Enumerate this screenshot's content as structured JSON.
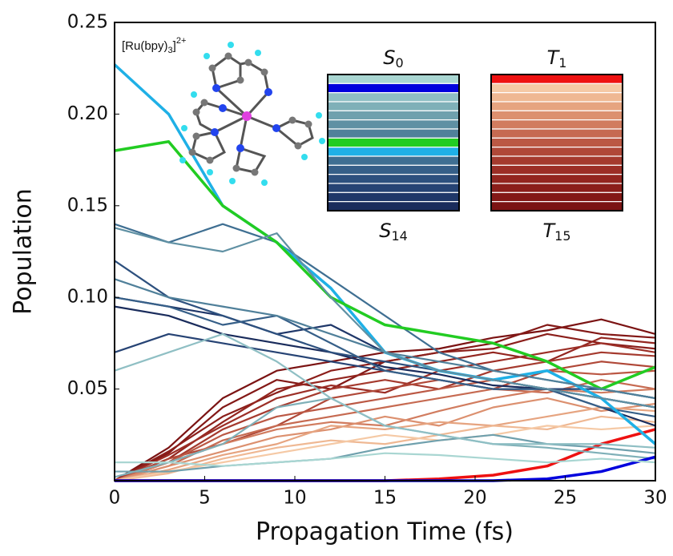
{
  "chart_data": {
    "type": "line",
    "x_label": "Propagation Time (fs)",
    "y_label": "Population",
    "xlim": [
      0,
      30
    ],
    "ylim": [
      0,
      0.25
    ],
    "xticks": [
      0,
      5,
      10,
      15,
      20,
      25,
      30
    ],
    "yticks": [
      0.05,
      {
        "value": 0.1,
        "label": "0.10"
      },
      0.15,
      {
        "value": 0.2,
        "label": "0.20"
      },
      0.25
    ],
    "annotation": {
      "text": "[Ru(bpy)",
      "sub": "3",
      "tail": "]",
      "sup": "2+"
    },
    "legend": {
      "groups": [
        {
          "top": {
            "symbol": "S",
            "subscript": "0"
          },
          "bottom": {
            "symbol": "S",
            "subscript": "14"
          }
        },
        {
          "top": {
            "symbol": "T",
            "subscript": "1"
          },
          "bottom": {
            "symbol": "T",
            "subscript": "15"
          }
        }
      ]
    },
    "x": [
      0,
      3,
      6,
      9,
      12,
      15,
      18,
      21,
      24,
      27,
      30
    ],
    "series": [
      {
        "color": "#a9d6d2",
        "values": [
          0.01,
          0.01,
          0.008,
          0.01,
          0.012,
          0.015,
          0.014,
          0.012,
          0.01,
          0.012,
          0.01
        ]
      },
      {
        "color": "#0000dd",
        "values": [
          0,
          0,
          0,
          0,
          0,
          0,
          0,
          0,
          0.001,
          0.005,
          0.013
        ]
      },
      {
        "color": "#8fbfc4",
        "values": [
          0.06,
          0.07,
          0.08,
          0.065,
          0.045,
          0.03,
          0.025,
          0.02,
          0.02,
          0.02,
          0.018
        ]
      },
      {
        "color": "#7fb0b8",
        "values": [
          0.002,
          0.01,
          0.02,
          0.04,
          0.045,
          0.03,
          0.025,
          0.02,
          0.018,
          0.015,
          0.012
        ]
      },
      {
        "color": "#6fa0ad",
        "values": [
          0.005,
          0.005,
          0.008,
          0.01,
          0.012,
          0.018,
          0.022,
          0.025,
          0.02,
          0.018,
          0.015
        ]
      },
      {
        "color": "#5f90a3",
        "values": [
          0.138,
          0.13,
          0.125,
          0.135,
          0.1,
          0.07,
          0.06,
          0.055,
          0.05,
          0.045,
          0.04
        ]
      },
      {
        "color": "#50809a",
        "values": [
          0.11,
          0.1,
          0.095,
          0.09,
          0.08,
          0.07,
          0.065,
          0.06,
          0.055,
          0.05,
          0.045
        ]
      },
      {
        "color": "#22cc22",
        "values": [
          0.18,
          0.185,
          0.15,
          0.13,
          0.1,
          0.085,
          0.08,
          0.075,
          0.065,
          0.05,
          0.062
        ]
      },
      {
        "color": "#1fb0e6",
        "values": [
          0.227,
          0.2,
          0.15,
          0.13,
          0.105,
          0.07,
          0.06,
          0.055,
          0.06,
          0.045,
          0.02
        ]
      },
      {
        "color": "#3f6f92",
        "values": [
          0.14,
          0.13,
          0.14,
          0.13,
          0.11,
          0.09,
          0.07,
          0.06,
          0.055,
          0.05,
          0.045
        ]
      },
      {
        "color": "#365f88",
        "values": [
          0.1,
          0.095,
          0.085,
          0.09,
          0.075,
          0.06,
          0.055,
          0.05,
          0.05,
          0.04,
          0.035
        ]
      },
      {
        "color": "#2d507e",
        "values": [
          0.12,
          0.1,
          0.09,
          0.08,
          0.07,
          0.065,
          0.06,
          0.055,
          0.05,
          0.045,
          0.04
        ]
      },
      {
        "color": "#264374",
        "values": [
          0.07,
          0.08,
          0.075,
          0.07,
          0.065,
          0.06,
          0.055,
          0.05,
          0.05,
          0.05,
          0.045
        ]
      },
      {
        "color": "#1f3769",
        "values": [
          0.1,
          0.095,
          0.09,
          0.08,
          0.085,
          0.07,
          0.06,
          0.055,
          0.05,
          0.045,
          0.04
        ]
      },
      {
        "color": "#1a2c5c",
        "values": [
          0.095,
          0.09,
          0.08,
          0.075,
          0.07,
          0.062,
          0.058,
          0.052,
          0.05,
          0.04,
          0.03
        ]
      },
      {
        "color": "#ee1111",
        "values": [
          0,
          0,
          0,
          0,
          0,
          0,
          0.001,
          0.003,
          0.008,
          0.02,
          0.028
        ]
      },
      {
        "color": "#f5c9a5",
        "values": [
          0,
          0.005,
          0.01,
          0.015,
          0.02,
          0.025,
          0.022,
          0.025,
          0.03,
          0.028,
          0.03
        ]
      },
      {
        "color": "#efb893",
        "values": [
          0,
          0.004,
          0.012,
          0.018,
          0.022,
          0.02,
          0.025,
          0.03,
          0.028,
          0.035,
          0.032
        ]
      },
      {
        "color": "#e6a480",
        "values": [
          0,
          0.006,
          0.014,
          0.02,
          0.03,
          0.028,
          0.032,
          0.03,
          0.035,
          0.04,
          0.038
        ]
      },
      {
        "color": "#dc906f",
        "values": [
          0,
          0.008,
          0.016,
          0.024,
          0.028,
          0.035,
          0.03,
          0.04,
          0.045,
          0.038,
          0.042
        ]
      },
      {
        "color": "#d17c5f",
        "values": [
          0,
          0.01,
          0.02,
          0.028,
          0.032,
          0.03,
          0.038,
          0.045,
          0.05,
          0.048,
          0.05
        ]
      },
      {
        "color": "#c66a51",
        "values": [
          0,
          0.008,
          0.022,
          0.03,
          0.035,
          0.04,
          0.045,
          0.05,
          0.048,
          0.055,
          0.05
        ]
      },
      {
        "color": "#bb5844",
        "values": [
          0,
          0.01,
          0.025,
          0.035,
          0.04,
          0.045,
          0.05,
          0.055,
          0.06,
          0.058,
          0.06
        ]
      },
      {
        "color": "#b04838",
        "values": [
          0,
          0.012,
          0.02,
          0.03,
          0.045,
          0.05,
          0.055,
          0.05,
          0.06,
          0.065,
          0.062
        ]
      },
      {
        "color": "#a53a2e",
        "values": [
          0,
          0.01,
          0.028,
          0.04,
          0.05,
          0.055,
          0.05,
          0.06,
          0.065,
          0.07,
          0.068
        ]
      },
      {
        "color": "#9c2e26",
        "values": [
          0,
          0.014,
          0.03,
          0.045,
          0.052,
          0.048,
          0.06,
          0.065,
          0.07,
          0.075,
          0.07
        ]
      },
      {
        "color": "#93251f",
        "values": [
          0,
          0.012,
          0.032,
          0.05,
          0.055,
          0.06,
          0.065,
          0.07,
          0.065,
          0.078,
          0.075
        ]
      },
      {
        "color": "#8b1e1a",
        "values": [
          0,
          0.016,
          0.035,
          0.048,
          0.06,
          0.065,
          0.07,
          0.072,
          0.08,
          0.075,
          0.072
        ]
      },
      {
        "color": "#831816",
        "values": [
          0,
          0.015,
          0.04,
          0.055,
          0.05,
          0.065,
          0.07,
          0.075,
          0.085,
          0.08,
          0.078
        ]
      },
      {
        "color": "#7b1313",
        "values": [
          0,
          0.018,
          0.045,
          0.06,
          0.065,
          0.07,
          0.072,
          0.078,
          0.082,
          0.088,
          0.08
        ]
      }
    ]
  }
}
